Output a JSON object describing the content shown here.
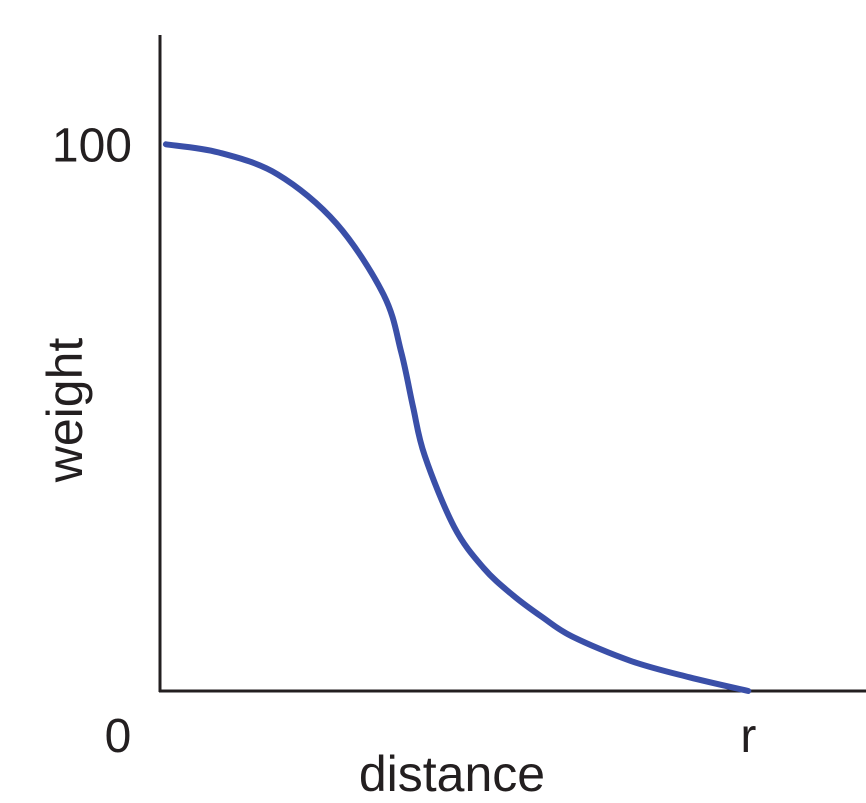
{
  "chart_data": {
    "type": "line",
    "title": "",
    "xlabel": "distance",
    "ylabel": "weight",
    "x_ticks": [
      {
        "value": 0,
        "label": "0"
      },
      {
        "value": 1,
        "label": "r"
      }
    ],
    "y_ticks": [
      {
        "value": 100,
        "label": "100"
      }
    ],
    "xlim": [
      0,
      1.2
    ],
    "ylim": [
      0,
      120
    ],
    "grid": false,
    "legend": "none",
    "color": "#3a4fa8",
    "series": [
      {
        "x": [
          0.01,
          0.1,
          0.2,
          0.3,
          0.38,
          0.41,
          0.43,
          0.45,
          0.5,
          0.55,
          0.6,
          0.65,
          0.7,
          0.8,
          0.9,
          1.0
        ],
        "y": [
          100,
          98.5,
          94.5,
          85.5,
          72.5,
          62,
          52,
          43,
          30,
          22.5,
          17.5,
          13.5,
          10,
          5.5,
          2.5,
          0
        ]
      }
    ]
  }
}
